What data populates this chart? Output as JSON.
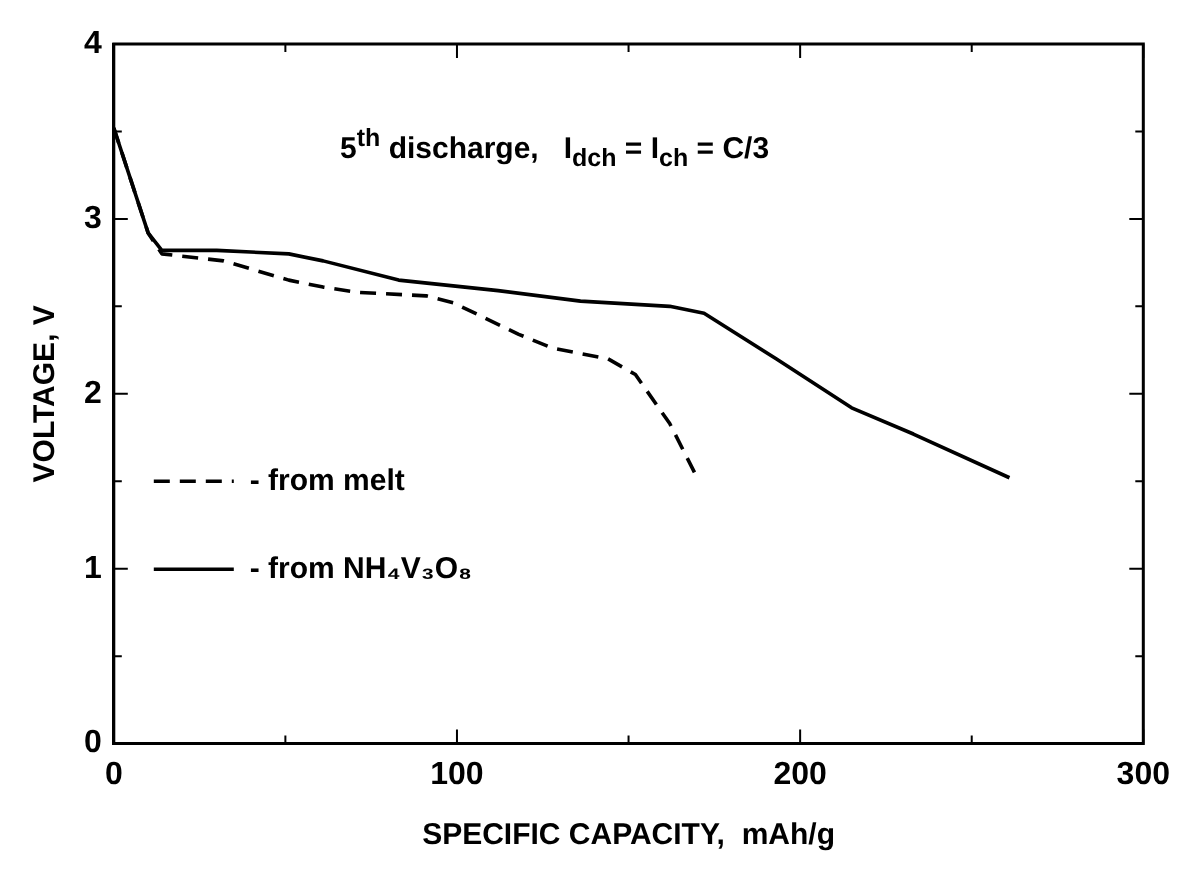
{
  "chart_data": {
    "type": "line",
    "xlabel": "SPECIFIC CAPACITY,  mAh/g",
    "ylabel": "VOLTAGE, V",
    "annotations": [
      "5$^{th}$ discharge,   I$_{dch}$ = I$_{ch}$ = C/3"
    ],
    "xlim": [
      0,
      300
    ],
    "ylim": [
      0,
      4
    ],
    "xticks": [
      0,
      {
        "value": 50,
        "label": null
      },
      100,
      {
        "value": 150,
        "label": null
      },
      200,
      {
        "value": 250,
        "label": null
      },
      300
    ],
    "yticks": [
      0,
      {
        "value": 0.5,
        "label": null
      },
      1,
      {
        "value": 1.5,
        "label": null
      },
      2,
      {
        "value": 2.5,
        "label": null
      },
      3,
      {
        "value": 3.5,
        "label": null
      },
      4
    ],
    "grid": false,
    "legend": "left",
    "marker": "none",
    "series": [
      {
        "name": "- from melt",
        "color": "#000000",
        "line_style": "dashed",
        "x": [
          0,
          10,
          14,
          32,
          51,
          61,
          71,
          91,
          99,
          118,
          128,
          144,
          152,
          162,
          170
        ],
        "values": [
          3.52,
          2.92,
          2.8,
          2.76,
          2.65,
          2.61,
          2.58,
          2.56,
          2.52,
          2.34,
          2.26,
          2.2,
          2.11,
          1.83,
          1.52
        ]
      },
      {
        "name": "- from NH₄V₃O₈",
        "color": "#000000",
        "line_style": "solid",
        "x": [
          0,
          10,
          14,
          30,
          51,
          61,
          83,
          112,
          136,
          162,
          172,
          193,
          215,
          233,
          261
        ],
        "values": [
          3.52,
          2.92,
          2.82,
          2.82,
          2.8,
          2.76,
          2.65,
          2.59,
          2.53,
          2.5,
          2.46,
          2.2,
          1.92,
          1.77,
          1.52
        ]
      }
    ]
  }
}
